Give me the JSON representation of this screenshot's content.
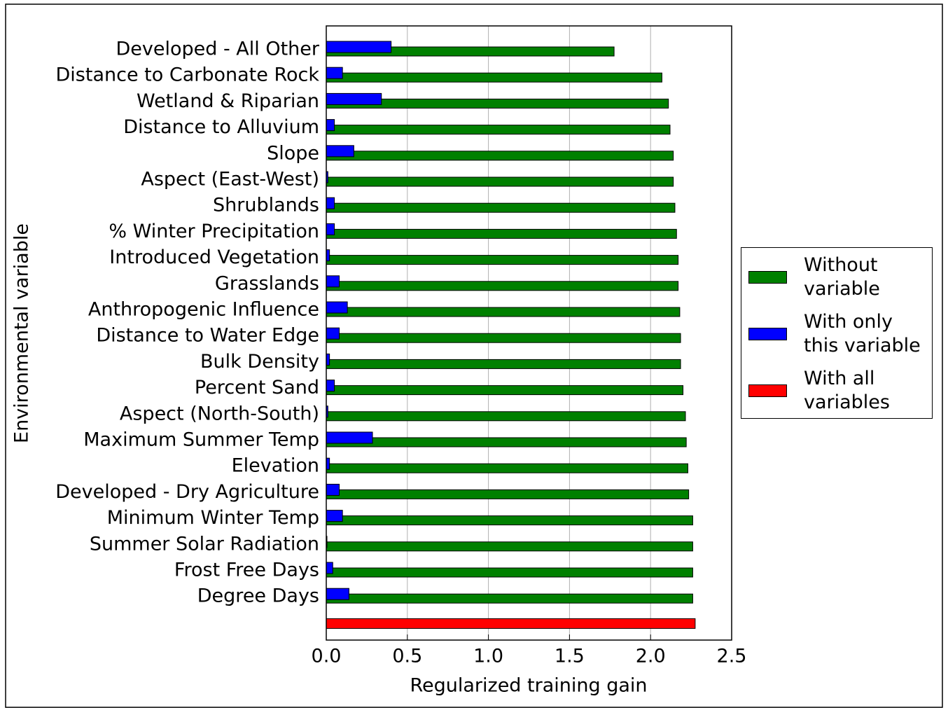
{
  "chart_data": {
    "type": "bar",
    "orientation": "horizontal",
    "xlabel": "Regularized training gain",
    "ylabel": "Environmental variable",
    "categories": [
      "Developed - All Other",
      "Distance to Carbonate Rock",
      "Wetland & Riparian",
      "Distance to Alluvium",
      "Slope",
      "Aspect (East-West)",
      "Shrublands",
      "% Winter Precipitation",
      "Introduced Vegetation",
      "Grasslands",
      "Anthropogenic Influence",
      "Distance to Water Edge",
      "Bulk Density",
      "Percent Sand",
      "Aspect (North-South)",
      "Maximum Summer Temp",
      "Elevation",
      "Developed - Dry Agriculture",
      "Minimum Winter Temp",
      "Summer Solar Radiation",
      "Frost Free Days",
      "Degree Days",
      null
    ],
    "series": [
      {
        "name": "Without variable",
        "color": "#008000",
        "values": [
          1.775,
          2.07,
          2.11,
          2.12,
          2.14,
          2.14,
          2.15,
          2.16,
          2.17,
          2.17,
          2.18,
          2.185,
          2.185,
          2.2,
          2.215,
          2.22,
          2.23,
          2.235,
          2.26,
          2.26,
          2.26,
          2.26,
          null
        ]
      },
      {
        "name": "With only this variable",
        "color": "#0000ff",
        "values": [
          0.4,
          0.1,
          0.34,
          0.05,
          0.17,
          0.01,
          0.05,
          0.05,
          0.02,
          0.08,
          0.13,
          0.08,
          0.02,
          0.05,
          0.01,
          0.285,
          0.02,
          0.08,
          0.1,
          0.0,
          0.04,
          0.14,
          null
        ]
      },
      {
        "name": "With all variables",
        "color": "#ff0000",
        "values": [
          null,
          null,
          null,
          null,
          null,
          null,
          null,
          null,
          null,
          null,
          null,
          null,
          null,
          null,
          null,
          null,
          null,
          null,
          null,
          null,
          null,
          null,
          2.275
        ]
      }
    ],
    "xlim": [
      0,
      2.5
    ],
    "xticks": [
      {
        "value": 0,
        "label": "0.0"
      },
      0.5,
      {
        "value": 1,
        "label": "1.0"
      },
      1.5,
      {
        "value": 2,
        "label": "2.0"
      },
      2.5
    ],
    "grid": true,
    "legend": "right"
  }
}
